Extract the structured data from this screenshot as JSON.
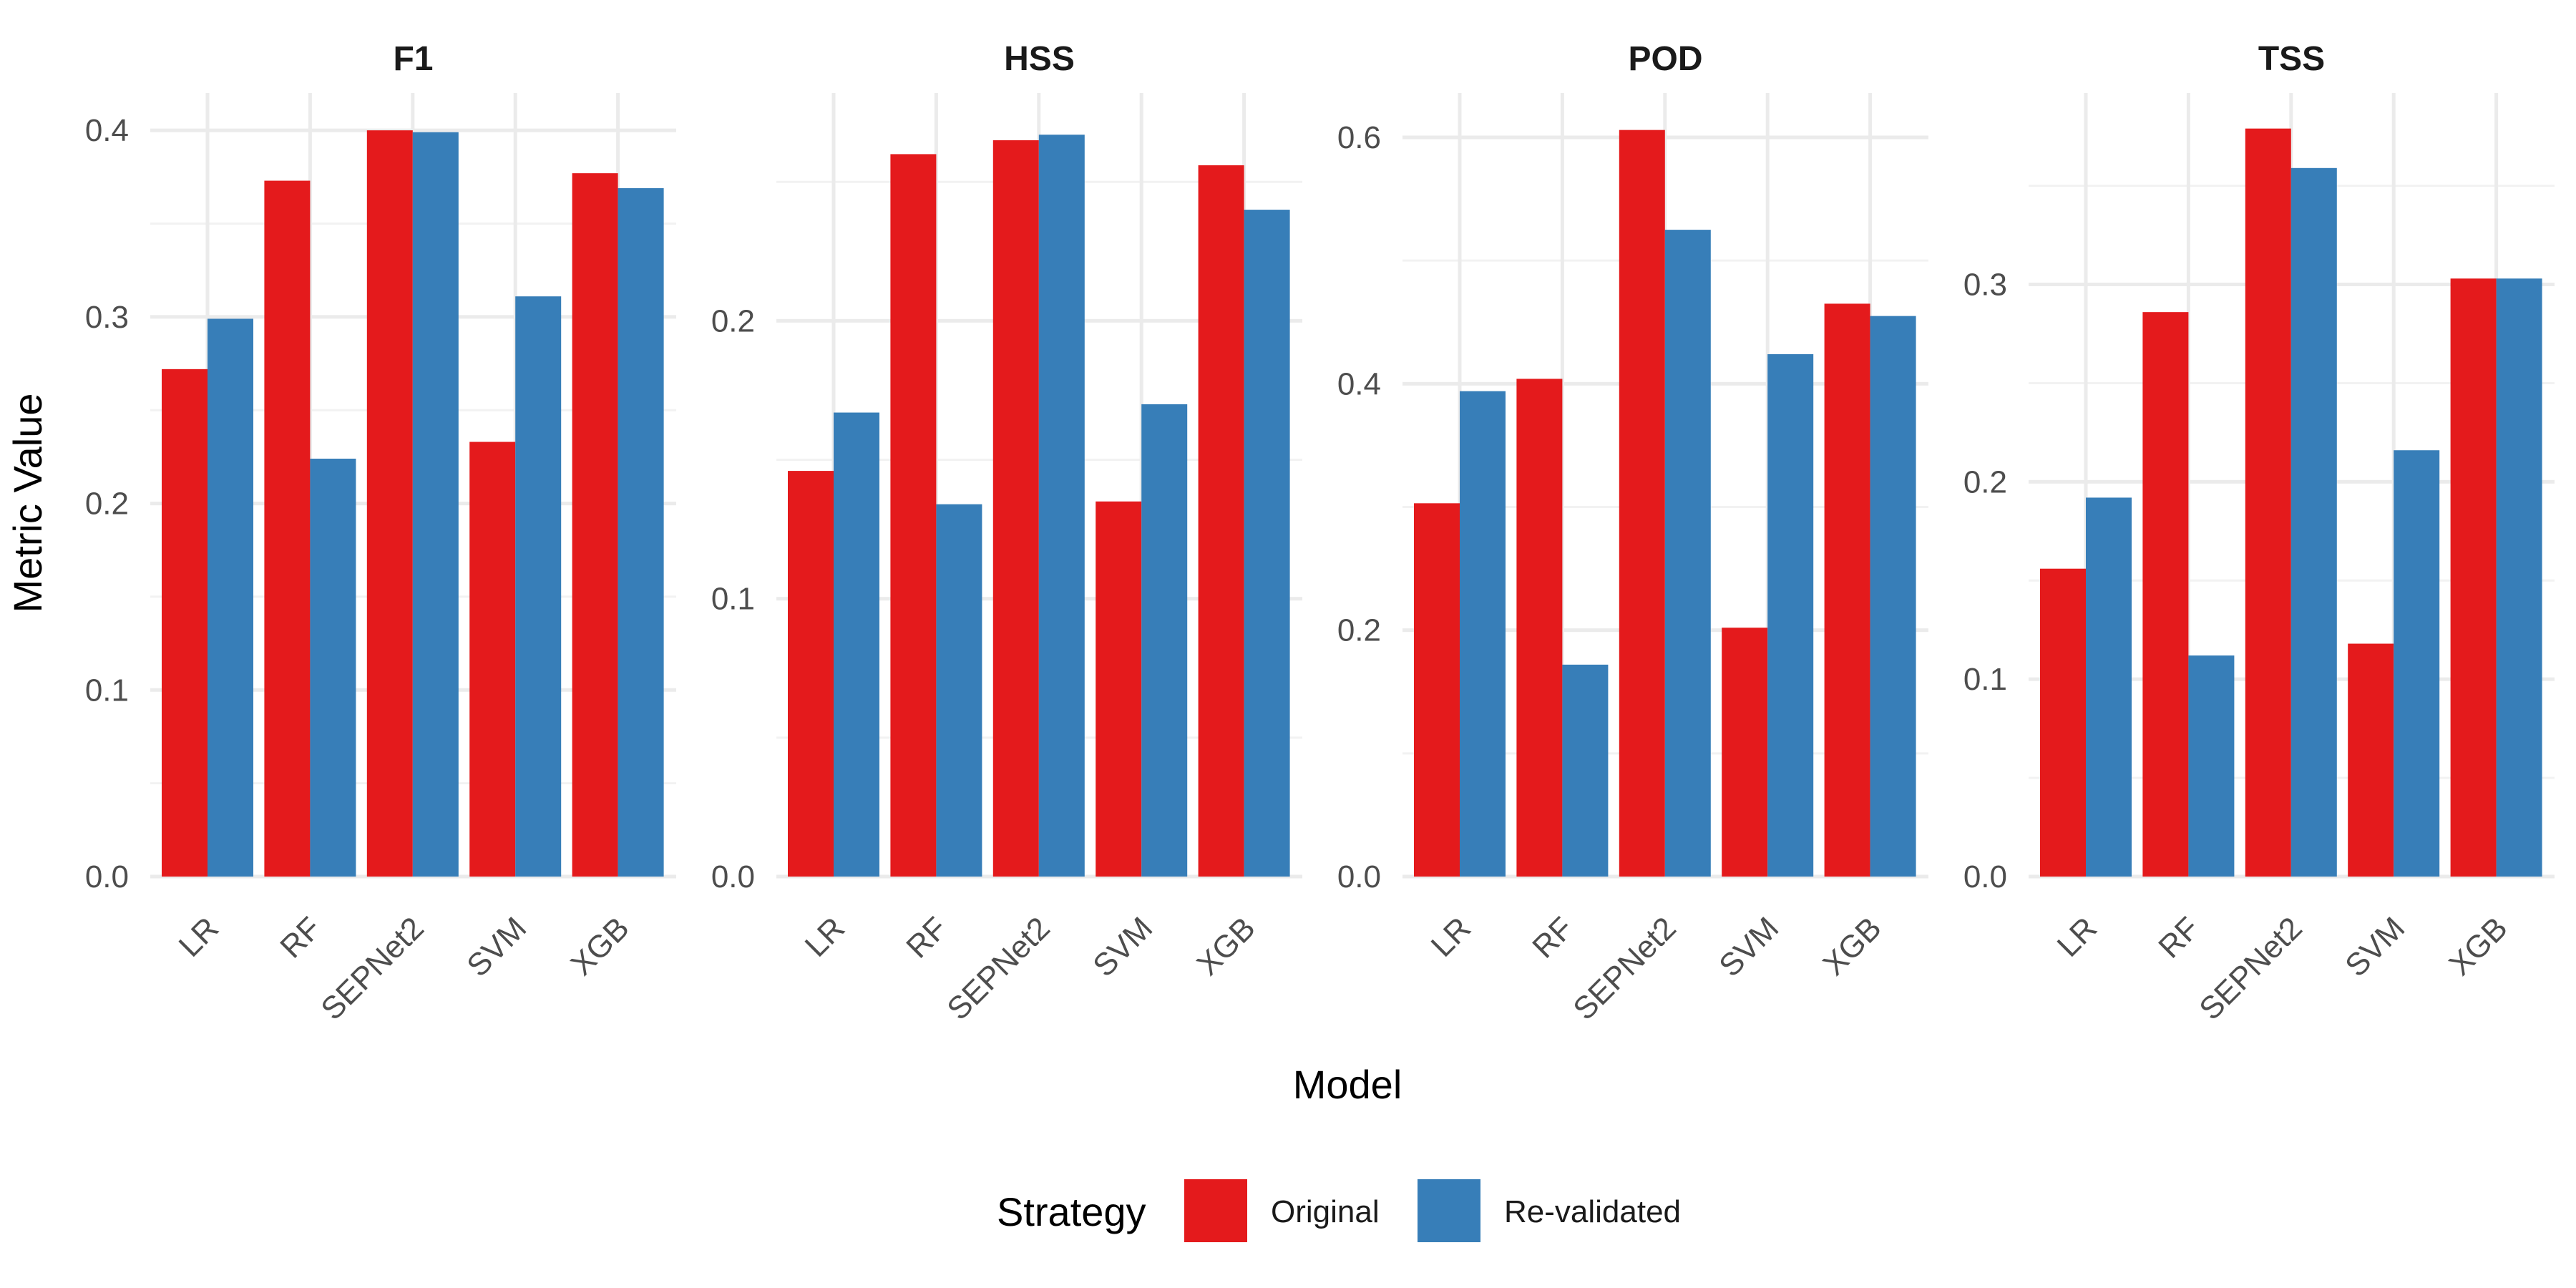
{
  "chart_data": {
    "type": "bar",
    "xlabel": "Model",
    "ylabel": "Metric Value",
    "categories": [
      "LR",
      "RF",
      "SEPNet2",
      "SVM",
      "XGB"
    ],
    "legend": {
      "title": "Strategy",
      "position": "bottom",
      "entries": [
        {
          "name": "Original",
          "color": "#E41A1C"
        },
        {
          "name": "Re-validated",
          "color": "#377EB8"
        }
      ]
    },
    "grid": true,
    "panels": [
      {
        "title": "F1",
        "ylim": [
          0,
          0.42
        ],
        "yticks": [
          0.0,
          0.1,
          0.2,
          0.3,
          0.4
        ],
        "ytick_labels": [
          "0.0",
          "0.1",
          "0.2",
          "0.3",
          "0.4"
        ],
        "series": [
          {
            "name": "Original",
            "values": [
              0.272,
              0.373,
              0.4,
              0.233,
              0.377
            ]
          },
          {
            "name": "Re-validated",
            "values": [
              0.299,
              0.224,
              0.399,
              0.311,
              0.369
            ]
          }
        ]
      },
      {
        "title": "HSS",
        "ylim": [
          0,
          0.282
        ],
        "yticks": [
          0.0,
          0.1,
          0.2
        ],
        "ytick_labels": [
          "0.0",
          "0.1",
          "0.2"
        ],
        "series": [
          {
            "name": "Original",
            "values": [
              0.146,
              0.26,
              0.265,
              0.135,
              0.256
            ]
          },
          {
            "name": "Re-validated",
            "values": [
              0.167,
              0.134,
              0.267,
              0.17,
              0.24
            ]
          }
        ]
      },
      {
        "title": "POD",
        "ylim": [
          0,
          0.636
        ],
        "yticks": [
          0.0,
          0.2,
          0.4,
          0.6
        ],
        "ytick_labels": [
          "0.0",
          "0.2",
          "0.4",
          "0.6"
        ],
        "series": [
          {
            "name": "Original",
            "values": [
              0.303,
              0.404,
              0.606,
              0.202,
              0.465
            ]
          },
          {
            "name": "Re-validated",
            "values": [
              0.394,
              0.172,
              0.525,
              0.424,
              0.455
            ]
          }
        ]
      },
      {
        "title": "TSS",
        "ylim": [
          0,
          0.397
        ],
        "yticks": [
          0.0,
          0.1,
          0.2,
          0.3
        ],
        "ytick_labels": [
          "0.0",
          "0.1",
          "0.2",
          "0.3"
        ],
        "series": [
          {
            "name": "Original",
            "values": [
              0.156,
              0.286,
              0.379,
              0.118,
              0.303
            ]
          },
          {
            "name": "Re-validated",
            "values": [
              0.192,
              0.112,
              0.359,
              0.216,
              0.303
            ]
          }
        ]
      }
    ]
  }
}
